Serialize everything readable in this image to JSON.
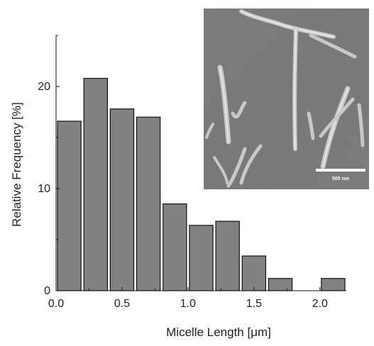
{
  "chart_data": {
    "type": "bar",
    "title": "",
    "xlabel": "Micelle Length [μm]",
    "ylabel": "Relative Frequency [%]",
    "bin_width": 0.2,
    "bin_centers": [
      0.1,
      0.3,
      0.5,
      0.7,
      0.9,
      1.1,
      1.3,
      1.5,
      1.7,
      1.9,
      2.1
    ],
    "values": [
      16.6,
      20.8,
      17.8,
      17.0,
      8.5,
      6.4,
      6.8,
      3.4,
      1.2,
      0,
      1.2
    ],
    "xlim": [
      0,
      2.2
    ],
    "ylim": [
      0,
      25
    ],
    "xticks": [
      "0.0",
      "0.5",
      "1.0",
      "1.5",
      "2.0"
    ],
    "xtick_values": [
      0,
      0.5,
      1.0,
      1.5,
      2.0
    ],
    "yticks": [
      "0",
      "10",
      "20"
    ],
    "ytick_values": [
      0,
      10,
      20
    ],
    "bar_color": "#828282",
    "grid": false,
    "legend": "none"
  },
  "inset": {
    "description_icon": "sem-micrograph-image",
    "scale_bar_label": "500 nm",
    "scale_bar_color": "#ffffff"
  }
}
